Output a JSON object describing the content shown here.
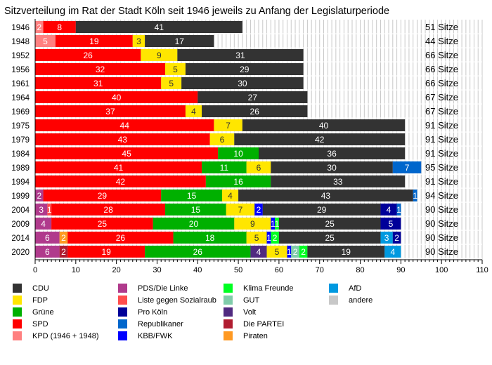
{
  "chart_data": {
    "type": "bar",
    "orientation": "horizontal",
    "stacked": true,
    "title": "Sitzverteilung im Rat der Stadt Köln seit 1946 jeweils zu Anfang der Legislaturperiode",
    "xlabel": "",
    "ylabel": "",
    "xlim": [
      0,
      110
    ],
    "xticks": [
      0,
      10,
      20,
      30,
      40,
      50,
      60,
      70,
      80,
      90,
      100,
      110
    ],
    "grid": "vertical minor every 1",
    "legend_position": "bottom",
    "total_suffix": "Sitze",
    "parties": {
      "CDU": {
        "label": "CDU",
        "color": "#333333",
        "text_color": "#ffffff"
      },
      "FDP": {
        "label": "FDP",
        "color": "#ffe600",
        "text_color": "#333333"
      },
      "GRUENE": {
        "label": "Grüne",
        "color": "#00b000",
        "text_color": "#ffffff"
      },
      "SPD": {
        "label": "SPD",
        "color": "#ff0000",
        "text_color": "#ffffff"
      },
      "KPD": {
        "label": "KPD (1946 + 1948)",
        "color": "#ff8080",
        "text_color": "#ffffff"
      },
      "LINKE": {
        "label": "PDS/Die Linke",
        "color": "#b03a8c",
        "text_color": "#ffffff"
      },
      "LISTE": {
        "label": "Liste gegen Sozialraub",
        "color": "#ff4d4d",
        "text_color": "#ffffff"
      },
      "PROKOELN": {
        "label": "Pro Köln",
        "color": "#000099",
        "text_color": "#ffffff"
      },
      "REP": {
        "label": "Republikaner",
        "color": "#0066cc",
        "text_color": "#ffffff"
      },
      "KBB": {
        "label": "KBB/FWK",
        "color": "#0000ff",
        "text_color": "#ffffff"
      },
      "KLIMA": {
        "label": "Klima Freunde",
        "color": "#00ff22",
        "text_color": "#ffffff"
      },
      "GUT": {
        "label": "GUT",
        "color": "#80ccaa",
        "text_color": "#ffffff"
      },
      "VOLT": {
        "label": "Volt",
        "color": "#502a80",
        "text_color": "#ffffff"
      },
      "PARTEI": {
        "label": "Die PARTEI",
        "color": "#b01c30",
        "text_color": "#ffffff"
      },
      "PIRATEN": {
        "label": "Piraten",
        "color": "#ff9922",
        "text_color": "#ffffff"
      },
      "AFD": {
        "label": "AfD",
        "color": "#0099e0",
        "text_color": "#ffffff"
      },
      "ANDERE": {
        "label": "andere",
        "color": "#c8c8c8",
        "text_color": "#000000"
      }
    },
    "legend_columns": [
      [
        "CDU",
        "FDP",
        "GRUENE",
        "SPD",
        "KPD"
      ],
      [
        "LINKE",
        "LISTE",
        "PROKOELN",
        "REP",
        "KBB"
      ],
      [
        "KLIMA",
        "GUT",
        "VOLT",
        "PARTEI",
        "PIRATEN"
      ],
      [
        "AFD",
        "ANDERE"
      ]
    ],
    "categories": [
      "1946",
      "1948",
      "1952",
      "1956",
      "1961",
      "1964",
      "1969",
      "1975",
      "1979",
      "1984",
      "1989",
      "1994",
      "1999",
      "2004",
      "2009",
      "2014",
      "2020"
    ],
    "rows": [
      {
        "year": "1946",
        "total": 51,
        "segments": [
          [
            "KPD",
            2
          ],
          [
            "SPD",
            8
          ],
          [
            "CDU",
            41
          ]
        ]
      },
      {
        "year": "1948",
        "total": 44,
        "segments": [
          [
            "KPD",
            5
          ],
          [
            "SPD",
            19
          ],
          [
            "FDP",
            3
          ],
          [
            "CDU",
            17
          ]
        ]
      },
      {
        "year": "1952",
        "total": 66,
        "segments": [
          [
            "SPD",
            26
          ],
          [
            "FDP",
            9
          ],
          [
            "CDU",
            31
          ]
        ]
      },
      {
        "year": "1956",
        "total": 66,
        "segments": [
          [
            "SPD",
            32
          ],
          [
            "FDP",
            5
          ],
          [
            "CDU",
            29
          ]
        ]
      },
      {
        "year": "1961",
        "total": 66,
        "segments": [
          [
            "SPD",
            31
          ],
          [
            "FDP",
            5
          ],
          [
            "CDU",
            30
          ]
        ]
      },
      {
        "year": "1964",
        "total": 67,
        "segments": [
          [
            "SPD",
            40
          ],
          [
            "CDU",
            27
          ]
        ]
      },
      {
        "year": "1969",
        "total": 67,
        "segments": [
          [
            "SPD",
            37
          ],
          [
            "FDP",
            4
          ],
          [
            "CDU",
            26
          ]
        ]
      },
      {
        "year": "1975",
        "total": 91,
        "segments": [
          [
            "SPD",
            44
          ],
          [
            "FDP",
            7
          ],
          [
            "CDU",
            40
          ]
        ]
      },
      {
        "year": "1979",
        "total": 91,
        "segments": [
          [
            "SPD",
            43
          ],
          [
            "FDP",
            6
          ],
          [
            "CDU",
            42
          ]
        ]
      },
      {
        "year": "1984",
        "total": 91,
        "segments": [
          [
            "SPD",
            45
          ],
          [
            "GRUENE",
            10
          ],
          [
            "CDU",
            36
          ]
        ]
      },
      {
        "year": "1989",
        "total": 95,
        "segments": [
          [
            "SPD",
            41
          ],
          [
            "GRUENE",
            11
          ],
          [
            "FDP",
            6
          ],
          [
            "CDU",
            30
          ],
          [
            "REP",
            7
          ]
        ]
      },
      {
        "year": "1994",
        "total": 91,
        "segments": [
          [
            "SPD",
            42
          ],
          [
            "GRUENE",
            16
          ],
          [
            "CDU",
            33
          ]
        ]
      },
      {
        "year": "1999",
        "total": 94,
        "segments": [
          [
            "LINKE",
            2
          ],
          [
            "SPD",
            29
          ],
          [
            "GRUENE",
            15
          ],
          [
            "FDP",
            4
          ],
          [
            "CDU",
            43
          ],
          [
            "REP",
            1
          ]
        ]
      },
      {
        "year": "2004",
        "total": 90,
        "segments": [
          [
            "LINKE",
            3
          ],
          [
            "LISTE",
            1
          ],
          [
            "SPD",
            28
          ],
          [
            "GRUENE",
            15
          ],
          [
            "FDP",
            7
          ],
          [
            "KBB",
            2
          ],
          [
            "CDU",
            29
          ],
          [
            "PROKOELN",
            4
          ],
          [
            "REP",
            1
          ]
        ]
      },
      {
        "year": "2009",
        "total": 90,
        "segments": [
          [
            "LINKE",
            4
          ],
          [
            "SPD",
            25
          ],
          [
            "GRUENE",
            20
          ],
          [
            "FDP",
            9
          ],
          [
            "KBB",
            1
          ],
          [
            "KLIMA",
            1
          ],
          [
            "CDU",
            25
          ],
          [
            "PROKOELN",
            5
          ]
        ]
      },
      {
        "year": "2014",
        "total": 90,
        "segments": [
          [
            "LINKE",
            6
          ],
          [
            "PIRATEN",
            2
          ],
          [
            "SPD",
            26
          ],
          [
            "GRUENE",
            18
          ],
          [
            "FDP",
            5
          ],
          [
            "KBB",
            1
          ],
          [
            "KLIMA",
            2
          ],
          [
            "CDU",
            25
          ],
          [
            "AFD",
            3
          ],
          [
            "PROKOELN",
            2
          ]
        ]
      },
      {
        "year": "2020",
        "total": 90,
        "segments": [
          [
            "LINKE",
            6
          ],
          [
            "PARTEI",
            2
          ],
          [
            "SPD",
            19
          ],
          [
            "GRUENE",
            26
          ],
          [
            "VOLT",
            4
          ],
          [
            "FDP",
            5
          ],
          [
            "KBB",
            1
          ],
          [
            "GUT",
            2
          ],
          [
            "KLIMA",
            2
          ],
          [
            "CDU",
            19
          ],
          [
            "AFD",
            4
          ]
        ]
      }
    ]
  }
}
